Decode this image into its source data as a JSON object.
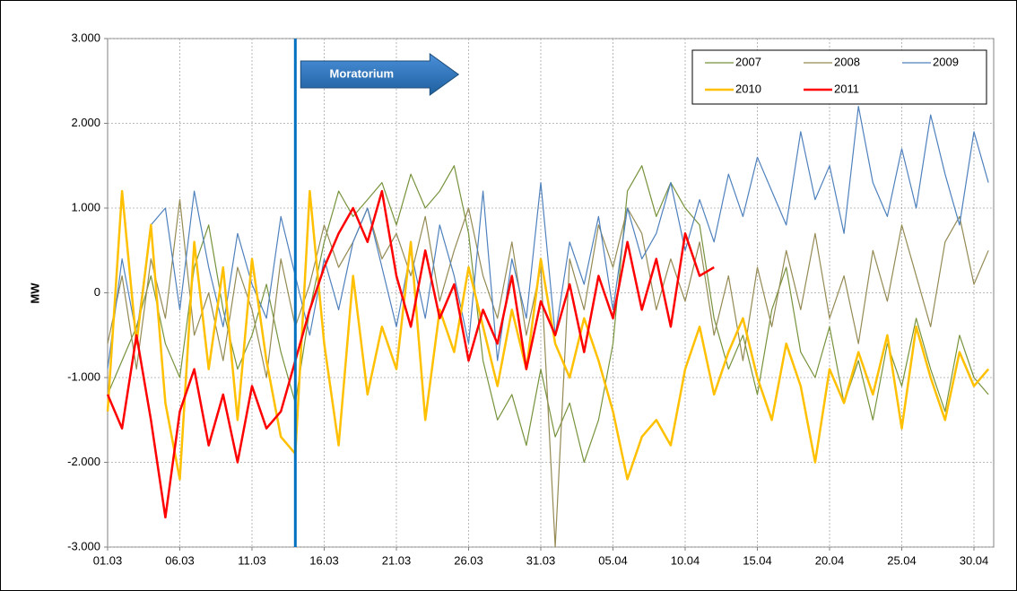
{
  "chart_data": {
    "type": "line",
    "y_label": "MW",
    "categories": [
      "01.03",
      "02.03",
      "03.03",
      "04.03",
      "05.03",
      "06.03",
      "07.03",
      "08.03",
      "09.03",
      "10.03",
      "11.03",
      "12.03",
      "13.03",
      "14.03",
      "15.03",
      "16.03",
      "17.03",
      "18.03",
      "19.03",
      "20.03",
      "21.03",
      "22.03",
      "23.03",
      "24.03",
      "25.03",
      "26.03",
      "27.03",
      "28.03",
      "29.03",
      "30.03",
      "31.03",
      "01.04",
      "02.04",
      "03.04",
      "04.04",
      "05.04",
      "06.04",
      "07.04",
      "08.04",
      "09.04",
      "10.04",
      "11.04",
      "12.04",
      "13.04",
      "14.04",
      "15.04",
      "16.04",
      "17.04",
      "18.04",
      "19.04",
      "20.04",
      "21.04",
      "22.04",
      "23.04",
      "24.04",
      "25.04",
      "26.04",
      "27.04",
      "28.04",
      "29.04",
      "30.04",
      "01.05"
    ],
    "ylim": [
      -3000,
      3000
    ],
    "yticks": [
      {
        "value": -3000,
        "label": "-3.000"
      },
      {
        "value": -2000,
        "label": "-2.000"
      },
      {
        "value": -1000,
        "label": "-1.000"
      },
      0,
      {
        "value": 1000,
        "label": "1.000"
      },
      {
        "value": 2000,
        "label": "2.000"
      },
      {
        "value": 3000,
        "label": "3.000"
      }
    ],
    "grid": true,
    "legend": "top-right",
    "annotation": {
      "text": "Moratorium",
      "x": "14.03",
      "color": "#0070c0"
    },
    "series": [
      {
        "name": "2007",
        "color": "#77933c",
        "width": 1.2,
        "values": [
          -1200,
          -800,
          -400,
          200,
          -600,
          -1000,
          300,
          800,
          -200,
          -900,
          -500,
          100,
          -700,
          -1300,
          -200,
          600,
          1200,
          900,
          1100,
          1300,
          800,
          1400,
          1000,
          1200,
          1500,
          700,
          -800,
          -1500,
          -1200,
          -1800,
          -900,
          -1700,
          -1300,
          -2000,
          -1500,
          -600,
          1200,
          1500,
          900,
          1300,
          1000,
          800,
          -300,
          -900,
          -500,
          -1200,
          -200,
          300,
          -700,
          -1000,
          -400,
          -1300,
          -800,
          -1500,
          -600,
          -1100,
          -300,
          -900,
          -1400,
          -500,
          -1000,
          -1200
        ]
      },
      {
        "name": "2008",
        "color": "#948a54",
        "width": 1.2,
        "values": [
          -600,
          200,
          -900,
          400,
          -300,
          1100,
          -500,
          0,
          -800,
          300,
          -200,
          -1000,
          400,
          -400,
          100,
          800,
          300,
          600,
          1000,
          400,
          700,
          200,
          900,
          -100,
          500,
          1000,
          200,
          -300,
          600,
          -500,
          300,
          -3000,
          400,
          -200,
          800,
          300,
          1000,
          700,
          -200,
          400,
          -100,
          600,
          -500,
          200,
          -800,
          300,
          -400,
          500,
          -200,
          700,
          -300,
          200,
          -600,
          500,
          -100,
          800,
          200,
          -400,
          600,
          900,
          100,
          500
        ]
      },
      {
        "name": "2009",
        "color": "#4f81bd",
        "width": 1.2,
        "values": [
          -900,
          400,
          -500,
          800,
          1000,
          -200,
          1200,
          300,
          -400,
          700,
          100,
          -300,
          900,
          200,
          -500,
          400,
          -200,
          600,
          1000,
          300,
          -400,
          500,
          -300,
          800,
          200,
          -600,
          1200,
          -800,
          400,
          -300,
          1300,
          -500,
          600,
          100,
          900,
          -200,
          1000,
          400,
          700,
          1300,
          500,
          1100,
          600,
          1400,
          900,
          1600,
          1200,
          800,
          1900,
          1100,
          1500,
          700,
          2200,
          1300,
          900,
          1700,
          1000,
          2100,
          1400,
          800,
          1900,
          1300
        ]
      },
      {
        "name": "2010",
        "color": "#ffc000",
        "width": 2.5,
        "values": [
          -1400,
          1200,
          -600,
          800,
          -1300,
          -2200,
          600,
          -900,
          300,
          -1500,
          400,
          -800,
          -1700,
          -1900,
          1200,
          -600,
          -1800,
          200,
          -1200,
          -400,
          -900,
          600,
          -1500,
          -200,
          -700,
          300,
          -400,
          -1100,
          -200,
          -900,
          400,
          -600,
          -1000,
          -300,
          -800,
          -1400,
          -2200,
          -1700,
          -1500,
          -1800,
          -900,
          -400,
          -1200,
          -700,
          -300,
          -1000,
          -1500,
          -600,
          -1100,
          -2000,
          -900,
          -1300,
          -700,
          -1200,
          -500,
          -1600,
          -400,
          -1000,
          -1500,
          -700,
          -1100,
          -900
        ]
      },
      {
        "name": "2011",
        "color": "#ff0000",
        "width": 2.5,
        "values": [
          -1200,
          -1600,
          -500,
          -1500,
          -2650,
          -1400,
          -900,
          -1800,
          -1200,
          -2000,
          -1100,
          -1600,
          -1400,
          -800,
          -200,
          300,
          700,
          1000,
          600,
          1200,
          200,
          -400,
          500,
          -300,
          100,
          -800,
          -200,
          -600,
          200,
          -900,
          -100,
          -500,
          100,
          -700,
          200,
          -300,
          600,
          -200,
          400,
          -400,
          700,
          200,
          300,
          null,
          null,
          null,
          null,
          null,
          null,
          null,
          null,
          null,
          null,
          null,
          null,
          null,
          null,
          null,
          null,
          null,
          null,
          null
        ]
      }
    ]
  }
}
